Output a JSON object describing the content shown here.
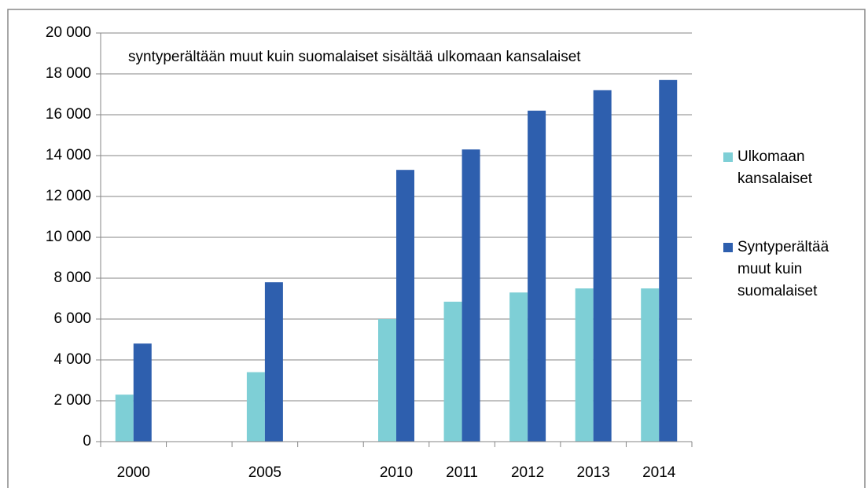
{
  "chart_data": {
    "type": "bar",
    "annotation": "syntyperältään muut kuin suomalaiset sisältää ulkomaan kansalaiset",
    "categories": [
      "2000",
      null,
      "2005",
      null,
      "2010",
      "2011",
      "2012",
      "2013",
      "2014"
    ],
    "series": [
      {
        "name": "Ulkomaan kansalaiset",
        "color": "#7ecfd6",
        "values": [
          2300,
          null,
          3400,
          null,
          6000,
          6850,
          7300,
          7500,
          7500
        ]
      },
      {
        "name": "Syntyperältää muut kuin suomalaiset",
        "color": "#2e5fae",
        "values": [
          4800,
          null,
          7800,
          null,
          13300,
          14300,
          16200,
          17200,
          17700
        ]
      }
    ],
    "ylim": [
      0,
      20000
    ],
    "yticks": [
      0,
      {
        "value": 2000,
        "label": "2 000"
      },
      {
        "value": 4000,
        "label": "4 000"
      },
      {
        "value": 6000,
        "label": "6 000"
      },
      {
        "value": 8000,
        "label": "8 000"
      },
      {
        "value": 10000,
        "label": "10 000"
      },
      {
        "value": 12000,
        "label": "12 000"
      },
      {
        "value": 14000,
        "label": "14 000"
      },
      {
        "value": 16000,
        "label": "16 000"
      },
      {
        "value": 18000,
        "label": "18 000"
      },
      {
        "value": 20000,
        "label": "20 000"
      }
    ],
    "grid": true,
    "legend": "right"
  }
}
